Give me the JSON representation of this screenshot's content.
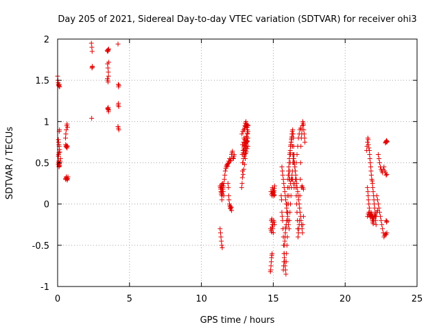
{
  "chart_data": {
    "type": "scatter",
    "title": "Day 205 of 2021, Sidereal Day-to-day VTEC variation (SDTVAR) for receiver ohi3",
    "xlabel": "GPS time / hours",
    "ylabel": "SDTVAR / TECUs",
    "xlim": [
      0,
      25
    ],
    "ylim": [
      -1,
      2
    ],
    "xticks": [
      0,
      5,
      10,
      15,
      20,
      25
    ],
    "xtick_labels": [
      "0",
      "5",
      "10",
      "15",
      "20",
      "25"
    ],
    "yticks": [
      -1,
      -0.5,
      0,
      0.5,
      1,
      1.5,
      2
    ],
    "ytick_labels": [
      "-1",
      "-0.5",
      "0",
      "0.5",
      "1",
      "1.5",
      "2"
    ],
    "grid": true,
    "marker": "+",
    "color": "#e00000",
    "series": [
      {
        "name": "SDTVAR",
        "x": [
          0.0,
          0.02,
          0.04,
          0.06,
          0.08,
          0.1,
          0.12,
          0.14,
          0.05,
          0.07,
          0.09,
          0.11,
          0.13,
          0.15,
          0.04,
          0.06,
          0.08,
          0.1,
          0.12,
          0.14,
          0.16,
          0.18,
          0.2,
          0.05,
          0.07,
          0.09,
          0.11,
          0.13,
          0.1,
          0.12,
          0.55,
          0.57,
          0.6,
          0.62,
          0.65,
          0.67,
          0.7,
          0.72,
          0.56,
          0.58,
          0.61,
          0.63,
          0.66,
          0.68,
          0.55,
          0.57,
          0.6,
          0.63,
          0.66,
          0.69,
          2.35,
          2.38,
          2.4,
          2.42,
          2.37,
          2.39,
          2.41,
          3.45,
          3.48,
          3.5,
          3.52,
          3.55,
          3.47,
          3.5,
          3.53,
          3.56,
          3.46,
          3.49,
          3.51,
          3.54,
          3.5,
          3.52,
          3.55,
          3.48,
          3.51,
          3.54,
          4.2,
          4.22,
          4.24,
          4.26,
          4.21,
          4.23,
          4.25,
          4.2,
          4.23,
          4.26,
          11.4,
          11.42,
          11.45,
          11.48,
          11.5,
          11.52,
          11.55,
          11.43,
          11.46,
          11.5,
          11.53,
          11.56,
          11.6,
          11.63,
          11.66,
          11.7,
          11.73,
          11.76,
          11.8,
          11.83,
          11.86,
          11.9,
          11.93,
          11.96,
          12.0,
          12.03,
          12.06,
          12.1,
          12.13,
          12.16,
          12.2,
          12.23,
          12.26,
          12.28,
          11.85,
          11.88,
          11.9,
          11.92,
          11.95,
          11.98,
          12.0,
          12.02,
          12.05,
          12.08,
          12.1,
          11.3,
          11.32,
          11.34,
          11.36,
          11.38,
          11.4,
          11.42,
          11.35,
          11.37,
          11.39,
          11.41,
          11.3,
          11.33,
          11.36,
          11.39,
          11.42,
          11.45,
          12.8,
          12.83,
          12.86,
          12.9,
          12.93,
          12.96,
          13.0,
          13.03,
          13.06,
          13.1,
          13.13,
          13.16,
          13.2,
          13.22,
          13.25,
          12.85,
          12.9,
          12.95,
          13.0,
          13.05,
          13.1,
          13.15,
          13.2,
          12.82,
          12.88,
          12.94,
          13.0,
          13.06,
          13.12,
          13.18,
          12.84,
          12.9,
          12.96,
          13.02,
          13.08,
          13.14,
          13.2,
          13.24,
          12.87,
          12.92,
          12.98,
          13.04,
          13.1,
          13.16,
          13.22,
          12.86,
          12.93,
          13.0,
          13.07,
          13.14,
          13.21,
          12.9,
          12.97,
          13.04,
          13.11,
          13.18,
          12.95,
          13.02,
          13.09,
          13.16,
          13.23,
          13.0,
          13.06,
          13.12,
          13.18,
          13.24,
          14.8,
          14.82,
          14.84,
          14.86,
          14.88,
          14.9,
          14.92,
          14.94,
          14.96,
          14.98,
          15.0,
          15.02,
          15.04,
          15.06,
          15.08,
          15.1,
          14.82,
          14.85,
          14.88,
          14.91,
          14.94,
          14.97,
          15.0,
          15.03,
          15.06,
          15.09,
          14.84,
          14.88,
          14.92,
          14.96,
          15.0,
          15.04,
          15.08,
          14.86,
          14.9,
          14.94,
          14.98,
          15.55,
          15.58,
          15.6,
          15.62,
          15.65,
          15.67,
          15.7,
          15.72,
          15.75,
          15.77,
          15.8,
          15.82,
          15.85,
          15.88,
          15.9,
          15.92,
          15.95,
          15.98,
          16.0,
          16.02,
          16.05,
          16.08,
          16.1,
          16.12,
          16.15,
          16.18,
          16.2,
          16.22,
          16.25,
          16.28,
          16.3,
          16.32,
          16.35,
          16.38,
          16.4,
          16.42,
          16.45,
          16.48,
          16.5,
          16.52,
          16.55,
          16.58,
          16.6,
          16.62,
          16.65,
          16.68,
          16.7,
          16.72,
          16.75,
          16.78,
          16.8,
          16.82,
          16.85,
          16.88,
          16.9,
          16.92,
          16.95,
          16.98,
          17.0,
          17.02,
          17.05,
          17.08,
          17.1,
          17.12,
          17.15,
          17.18,
          17.2,
          15.6,
          15.63,
          15.66,
          15.7,
          15.73,
          15.76,
          15.8,
          15.83,
          15.86,
          15.9,
          15.93,
          15.96,
          16.0,
          16.03,
          16.06,
          16.1,
          16.13,
          16.16,
          16.2,
          16.23,
          16.26,
          16.3,
          16.33,
          16.36,
          16.4,
          16.43,
          16.46,
          16.5,
          16.53,
          16.56,
          16.6,
          16.63,
          16.66,
          16.7,
          16.73,
          16.76,
          16.8,
          16.83,
          16.86,
          16.9,
          16.93,
          16.96,
          17.0,
          17.03,
          17.06,
          17.1,
          15.7,
          15.72,
          15.74,
          15.76,
          15.78,
          15.8,
          15.82,
          15.84,
          15.86,
          15.88,
          15.9,
          15.92,
          15.94,
          15.96,
          15.98,
          16.0,
          16.02,
          16.04,
          16.06,
          16.08,
          16.1,
          16.12,
          16.14,
          16.16,
          16.18,
          16.2,
          16.22,
          16.24,
          16.26,
          16.28,
          16.3,
          16.32,
          16.34,
          16.36,
          16.38,
          16.4,
          16.1,
          16.15,
          16.2,
          16.25,
          16.3,
          16.35,
          16.4,
          16.45,
          16.5,
          16.55,
          16.6,
          16.65,
          16.7,
          16.75,
          16.8,
          16.85,
          16.9,
          16.95,
          17.0,
          17.05,
          17.1,
          21.5,
          21.52,
          21.55,
          21.58,
          21.6,
          21.62,
          21.65,
          21.68,
          21.7,
          21.72,
          21.75,
          21.78,
          21.8,
          21.82,
          21.85,
          21.88,
          21.9,
          21.92,
          21.95,
          21.98,
          22.0,
          22.02,
          22.05,
          22.08,
          22.1,
          22.12,
          22.15,
          21.55,
          21.58,
          21.6,
          21.62,
          21.65,
          21.68,
          21.7,
          21.72,
          21.75,
          21.78,
          21.8,
          21.82,
          21.85,
          21.88,
          21.9,
          21.92,
          21.95,
          21.98,
          22.0,
          21.55,
          21.6,
          21.65,
          21.7,
          21.75,
          21.8,
          21.85,
          21.9,
          21.95,
          22.0,
          22.05,
          22.1,
          22.15,
          22.2,
          22.25,
          22.2,
          22.25,
          22.3,
          22.35,
          22.4,
          22.45,
          22.5,
          22.55,
          22.6,
          22.65,
          22.7,
          22.75,
          22.8,
          22.85,
          22.9,
          22.3,
          22.35,
          22.4,
          22.45,
          22.5,
          22.55,
          22.6,
          22.65,
          22.7,
          22.75,
          22.8,
          22.85,
          22.9,
          22.8,
          22.82,
          22.85,
          22.88,
          22.9,
          22.92,
          22.85,
          22.88,
          22.9
        ],
        "y": [
          1.55,
          1.5,
          1.47,
          1.45,
          1.44,
          1.43,
          1.45,
          1.42,
          0.78,
          0.75,
          0.72,
          0.7,
          0.66,
          0.63,
          0.48,
          0.5,
          0.52,
          0.46,
          0.49,
          0.47,
          0.5,
          0.52,
          0.55,
          0.58,
          0.6,
          0.62,
          0.88,
          0.9,
          0.45,
          0.47,
          0.3,
          0.31,
          0.33,
          0.32,
          0.3,
          0.29,
          0.31,
          0.33,
          0.72,
          0.7,
          0.69,
          0.71,
          0.68,
          0.7,
          0.8,
          0.85,
          0.9,
          0.95,
          0.97,
          0.93,
          1.95,
          1.9,
          1.85,
          1.66,
          1.04,
          1.65,
          1.67,
          1.86,
          1.85,
          1.87,
          1.86,
          1.88,
          1.7,
          1.65,
          1.6,
          1.72,
          1.52,
          1.5,
          1.48,
          1.55,
          1.15,
          1.17,
          1.14,
          1.16,
          1.15,
          1.12,
          1.94,
          1.45,
          1.42,
          1.44,
          1.2,
          1.22,
          1.18,
          0.94,
          0.92,
          0.9,
          0.2,
          0.22,
          0.18,
          0.25,
          0.2,
          0.15,
          0.1,
          0.05,
          0.12,
          0.18,
          0.22,
          0.25,
          0.3,
          0.35,
          0.4,
          0.43,
          0.45,
          0.47,
          0.48,
          0.46,
          0.49,
          0.52,
          0.5,
          0.55,
          0.52,
          0.53,
          0.55,
          0.6,
          0.62,
          0.64,
          0.56,
          0.55,
          0.58,
          0.6,
          0.25,
          0.2,
          0.1,
          0.05,
          0.0,
          -0.02,
          -0.05,
          -0.03,
          -0.06,
          -0.04,
          -0.08,
          0.22,
          0.2,
          0.18,
          0.15,
          0.12,
          0.14,
          0.1,
          0.18,
          0.2,
          0.22,
          0.24,
          -0.3,
          -0.35,
          -0.4,
          -0.45,
          -0.5,
          -0.53,
          0.2,
          0.25,
          0.4,
          0.5,
          0.65,
          0.8,
          0.9,
          0.95,
          0.98,
          1.0,
          0.97,
          0.93,
          0.9,
          0.96,
          0.95,
          0.32,
          0.36,
          0.42,
          0.48,
          0.55,
          0.62,
          0.7,
          0.76,
          0.85,
          0.88,
          0.9,
          0.92,
          0.94,
          0.96,
          0.93,
          0.6,
          0.65,
          0.7,
          0.74,
          0.78,
          0.82,
          0.86,
          0.88,
          0.5,
          0.55,
          0.6,
          0.65,
          0.7,
          0.75,
          0.8,
          0.72,
          0.75,
          0.78,
          0.8,
          0.82,
          0.85,
          0.62,
          0.66,
          0.7,
          0.73,
          0.76,
          0.68,
          0.71,
          0.74,
          0.77,
          0.8,
          0.58,
          0.61,
          0.64,
          0.67,
          0.7,
          -0.82,
          -0.8,
          -0.75,
          -0.7,
          -0.65,
          -0.62,
          -0.6,
          0.2,
          0.18,
          0.15,
          0.12,
          0.14,
          0.1,
          0.16,
          0.19,
          0.22,
          -0.3,
          -0.32,
          -0.34,
          -0.28,
          -0.25,
          -0.3,
          -0.35,
          -0.2,
          -0.22,
          -0.25,
          0.15,
          0.12,
          0.1,
          0.13,
          0.16,
          0.14,
          0.11,
          -0.2,
          -0.18,
          -0.22,
          -0.25,
          0.1,
          0.05,
          -0.1,
          -0.15,
          -0.2,
          -0.3,
          -0.4,
          -0.5,
          -0.6,
          -0.65,
          -0.7,
          -0.75,
          -0.8,
          -0.85,
          -0.7,
          -0.6,
          -0.5,
          -0.4,
          -0.2,
          -0.1,
          0.0,
          0.1,
          0.2,
          0.3,
          0.4,
          0.5,
          0.6,
          0.7,
          0.75,
          0.8,
          0.85,
          0.88,
          0.9,
          0.85,
          0.8,
          0.7,
          0.6,
          0.5,
          0.45,
          0.4,
          0.3,
          0.2,
          0.1,
          0.0,
          -0.1,
          -0.2,
          -0.3,
          -0.4,
          -0.35,
          -0.3,
          -0.25,
          -0.2,
          0.1,
          0.3,
          0.5,
          0.7,
          0.8,
          0.85,
          0.9,
          0.95,
          1.0,
          0.98,
          0.96,
          0.9,
          0.85,
          0.8,
          0.75,
          0.45,
          0.4,
          0.35,
          0.3,
          0.25,
          0.2,
          0.15,
          0.1,
          0.05,
          0.0,
          -0.05,
          -0.1,
          -0.15,
          -0.2,
          -0.25,
          -0.3,
          -0.2,
          -0.1,
          0.0,
          0.1,
          0.2,
          0.3,
          0.4,
          0.5,
          0.6,
          0.55,
          0.5,
          0.45,
          0.4,
          0.35,
          0.3,
          0.25,
          0.2,
          0.15,
          0.1,
          0.05,
          0.0,
          -0.05,
          -0.1,
          -0.15,
          -0.2,
          -0.25,
          -0.3,
          -0.35,
          -0.25,
          -0.15,
          -0.8,
          -0.75,
          -0.7,
          -0.6,
          -0.5,
          -0.45,
          -0.4,
          -0.35,
          -0.3,
          -0.28,
          -0.25,
          -0.2,
          -0.1,
          0.0,
          0.1,
          0.2,
          0.3,
          0.35,
          0.4,
          0.45,
          0.5,
          0.55,
          0.6,
          0.62,
          0.65,
          0.7,
          0.72,
          0.75,
          0.78,
          0.8,
          0.82,
          0.85,
          0.7,
          0.6,
          0.55,
          0.5,
          0.35,
          0.3,
          0.25,
          0.3,
          0.35,
          0.3,
          0.25,
          0.2,
          0.25,
          0.3,
          0.5,
          0.6,
          0.7,
          0.8,
          0.85,
          0.9,
          0.92,
          0.2,
          0.22,
          0.2,
          0.18,
          0.65,
          0.7,
          0.75,
          0.8,
          0.78,
          0.72,
          0.68,
          0.65,
          0.6,
          0.55,
          0.5,
          0.45,
          0.4,
          0.35,
          0.3,
          0.28,
          0.25,
          0.2,
          0.15,
          0.1,
          0.05,
          0.0,
          -0.05,
          -0.1,
          -0.15,
          -0.2,
          -0.25,
          0.2,
          0.15,
          0.1,
          0.05,
          0.0,
          -0.05,
          -0.1,
          -0.12,
          -0.15,
          -0.13,
          -0.1,
          -0.12,
          -0.15,
          -0.18,
          -0.2,
          -0.22,
          -0.24,
          -0.2,
          -0.18,
          -0.15,
          -0.12,
          -0.1,
          -0.13,
          -0.16,
          -0.14,
          -0.12,
          -0.15,
          -0.18,
          -0.16,
          -0.14,
          -0.12,
          -0.15,
          -0.1,
          -0.08,
          0.1,
          0.05,
          0.0,
          -0.05,
          -0.1,
          -0.15,
          -0.2,
          -0.25,
          -0.3,
          -0.35,
          -0.4,
          -0.38,
          -0.36,
          -0.37,
          -0.35,
          0.6,
          0.55,
          0.5,
          0.45,
          0.42,
          0.4,
          0.38,
          0.42,
          0.45,
          0.4,
          0.38,
          0.35,
          0.36,
          0.74,
          0.75,
          0.76,
          0.77,
          0.75,
          0.76,
          -0.2,
          -0.22,
          -0.21
        ]
      }
    ]
  }
}
